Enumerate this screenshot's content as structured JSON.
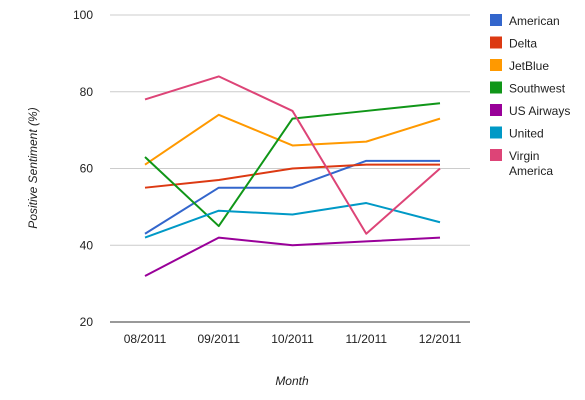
{
  "chart_data": {
    "type": "line",
    "title": "",
    "xlabel": "Month",
    "ylabel": "Positive Sentiment (%)",
    "categories": [
      "08/2011",
      "09/2011",
      "10/2011",
      "11/2011",
      "12/2011"
    ],
    "ylim": [
      20,
      100
    ],
    "yticks": [
      20,
      40,
      60,
      80,
      100
    ],
    "grid": true,
    "legend_position": "right",
    "series": [
      {
        "name": "American",
        "color": "#3366cc",
        "values": [
          43,
          55,
          55,
          62,
          62
        ]
      },
      {
        "name": "Delta",
        "color": "#dc3912",
        "values": [
          55,
          57,
          60,
          61,
          61
        ]
      },
      {
        "name": "JetBlue",
        "color": "#ff9900",
        "values": [
          61,
          74,
          66,
          67,
          73
        ]
      },
      {
        "name": "Southwest",
        "color": "#109618",
        "values": [
          63,
          45,
          73,
          75,
          77
        ]
      },
      {
        "name": "US Airways",
        "color": "#990099",
        "values": [
          32,
          42,
          40,
          41,
          42
        ]
      },
      {
        "name": "United",
        "color": "#0099c6",
        "values": [
          42,
          49,
          48,
          51,
          46
        ]
      },
      {
        "name": "Virgin America",
        "color": "#dd4477",
        "values": [
          78,
          84,
          75,
          43,
          60
        ]
      }
    ]
  }
}
